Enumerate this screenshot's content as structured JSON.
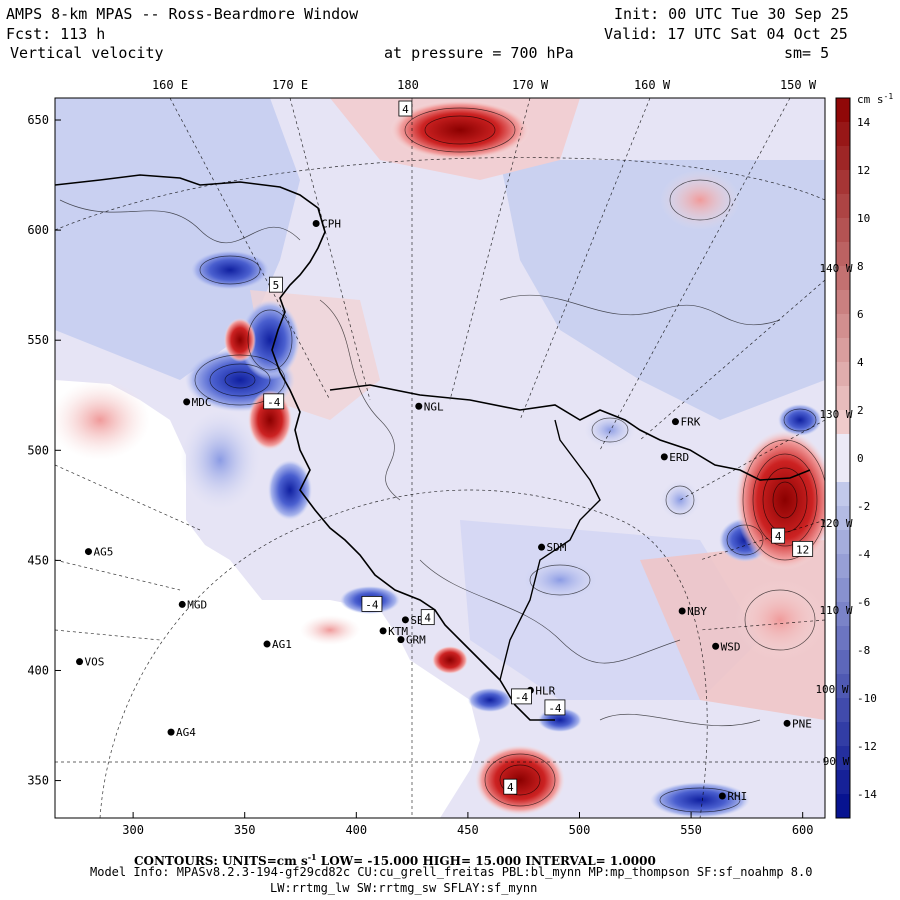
{
  "header": {
    "title": "AMPS 8-km MPAS -- Ross-Beardmore Window",
    "init": "Init: 00 UTC Tue 30 Sep 25",
    "fcst": "Fcst:  113 h",
    "valid": "Valid: 17 UTC Sat 04 Oct 25",
    "field": "Vertical velocity",
    "pressure": "at pressure =  700 hPa",
    "smooth": "sm= 5"
  },
  "top_axis": [
    "160 E",
    "170 E",
    "180",
    "170 W",
    "160 W",
    "150 W"
  ],
  "right_lon_labels": [
    "140 W",
    "130 W",
    "120 W",
    "110 W",
    "100 W",
    "90 W"
  ],
  "x_axis": {
    "range": [
      265,
      610
    ],
    "ticks": [
      300,
      350,
      400,
      450,
      500,
      550,
      600
    ]
  },
  "y_axis": {
    "range": [
      333,
      660
    ],
    "ticks": [
      650,
      600,
      550,
      500,
      450,
      400,
      350
    ]
  },
  "colorbar": {
    "units": "cm s",
    "units_exp": "-1",
    "range": [
      -15,
      15
    ],
    "ticks": [
      "14",
      "12",
      "10",
      "8",
      "6",
      "4",
      "2",
      "0",
      "-2",
      "-4",
      "-6",
      "-8",
      "-10",
      "-12",
      "-14"
    ]
  },
  "stations": [
    {
      "id": "CPH",
      "x": 382,
      "y": 603
    },
    {
      "id": "MDC",
      "x": 324,
      "y": 522
    },
    {
      "id": "NGL",
      "x": 428,
      "y": 520
    },
    {
      "id": "FRK",
      "x": 543,
      "y": 513
    },
    {
      "id": "ERD",
      "x": 538,
      "y": 497
    },
    {
      "id": "AG5",
      "x": 280,
      "y": 454
    },
    {
      "id": "SDM",
      "x": 483,
      "y": 456
    },
    {
      "id": "MGD",
      "x": 322,
      "y": 430
    },
    {
      "id": "NBY",
      "x": 546,
      "y": 427
    },
    {
      "id": "SBC",
      "x": 422,
      "y": 423
    },
    {
      "id": "GRM",
      "x": 420,
      "y": 414
    },
    {
      "id": "KTM",
      "x": 412,
      "y": 418
    },
    {
      "id": "AG1",
      "x": 360,
      "y": 412
    },
    {
      "id": "WSD",
      "x": 561,
      "y": 411
    },
    {
      "id": "VOS",
      "x": 276,
      "y": 404
    },
    {
      "id": "HLR",
      "x": 478,
      "y": 391
    },
    {
      "id": "AG4",
      "x": 317,
      "y": 372
    },
    {
      "id": "PNE",
      "x": 593,
      "y": 376
    },
    {
      "id": "RHI",
      "x": 564,
      "y": 343
    }
  ],
  "extrema_labels": [
    {
      "v": "4",
      "x": 422,
      "y": 655
    },
    {
      "v": "-4",
      "x": 363,
      "y": 522
    },
    {
      "v": "5",
      "x": 364,
      "y": 575
    },
    {
      "v": "-4",
      "x": 407,
      "y": 430
    },
    {
      "v": "4",
      "x": 432,
      "y": 424
    },
    {
      "v": "-4",
      "x": 474,
      "y": 388
    },
    {
      "v": "-4",
      "x": 489,
      "y": 383
    },
    {
      "v": "4",
      "x": 589,
      "y": 461
    },
    {
      "v": "12",
      "x": 600,
      "y": 455
    },
    {
      "v": "4",
      "x": 469,
      "y": 347
    }
  ],
  "footer": {
    "contours_label": "CONTOURS:  UNITS=cm s",
    "contours_exp": "-1",
    "contours_rest": "  LOW= -15.000     HIGH=  15.000     INTERVAL=   1.0000",
    "model_info": "Model Info: MPASv8.2.3-194-gf29cd82c CU:cu_grell_freitas PBL:bl_mynn MP:mp_thompson SF:sf_noahmp 8.0",
    "schemes": "LW:rrtmg_lw SW:rrtmg_sw SFLAY:sf_mynn"
  },
  "colors": {
    "zero": "#eceaf6",
    "pos": "#cc1111",
    "neg": "#1122bb"
  }
}
